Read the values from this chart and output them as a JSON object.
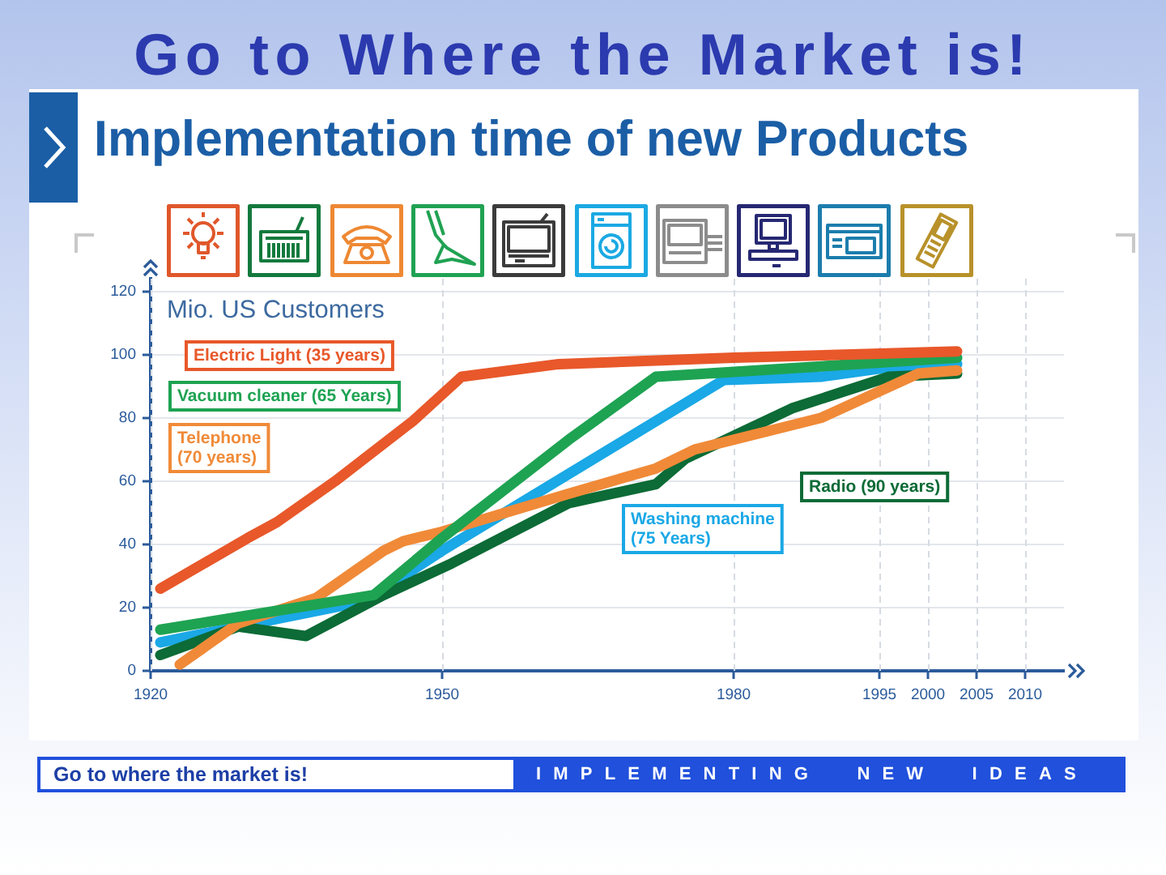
{
  "chart_data": {
    "type": "line",
    "title": "Go to Where the Market is!",
    "subtitle": "Implementation time of new Products",
    "ylabel": "Mio. US Customers",
    "annotations": [
      "Go to where the market is!",
      "IMPLEMENTING NEW IDEAS"
    ],
    "xlim": [
      1920,
      2014
    ],
    "xticks": [
      1920,
      1950,
      1980,
      1995,
      2000,
      2005,
      2010
    ],
    "ylim": [
      0,
      124
    ],
    "yticks": [
      0,
      20,
      40,
      60,
      80,
      100,
      120
    ],
    "grid": true,
    "marker": "none",
    "series": [
      {
        "name": "Electric Light (35 years)",
        "color": "#e8582a",
        "x": [
          1921,
          1930,
          1933,
          1939,
          1947,
          1952,
          1962,
          1980,
          2003
        ],
        "values": [
          26,
          42,
          47,
          60,
          79,
          93,
          97,
          99,
          101
        ]
      },
      {
        "name": "Vacuum cleaner (65 Years)",
        "color": "#1ea352",
        "x": [
          1921,
          1943,
          1950,
          1963,
          1972,
          2003
        ],
        "values": [
          13,
          24,
          42,
          73,
          93,
          99
        ]
      },
      {
        "name": "Telephone (70 years)",
        "color": "#f08a38",
        "x": [
          1923,
          1929,
          1937,
          1944,
          1946,
          1950,
          1963,
          1972,
          1976,
          1989,
          1999,
          2003
        ],
        "values": [
          2,
          15,
          23,
          38,
          41,
          44,
          56,
          64,
          70,
          80,
          94,
          95
        ]
      },
      {
        "name": "Radio (90 years)",
        "color": "#0c6b36",
        "x": [
          1921,
          1929,
          1936,
          1944,
          1951,
          1963,
          1972,
          1975,
          1986,
          1996,
          2003
        ],
        "values": [
          5,
          14,
          11,
          24,
          34,
          53,
          59,
          67,
          83,
          93,
          94
        ]
      },
      {
        "name": "Washing machine (75 Years)",
        "color": "#1aa8e6",
        "x": [
          1921,
          1942,
          1950,
          1979,
          1989,
          1996,
          2003
        ],
        "values": [
          9,
          22,
          38,
          92,
          93,
          96,
          97
        ]
      }
    ]
  }
}
